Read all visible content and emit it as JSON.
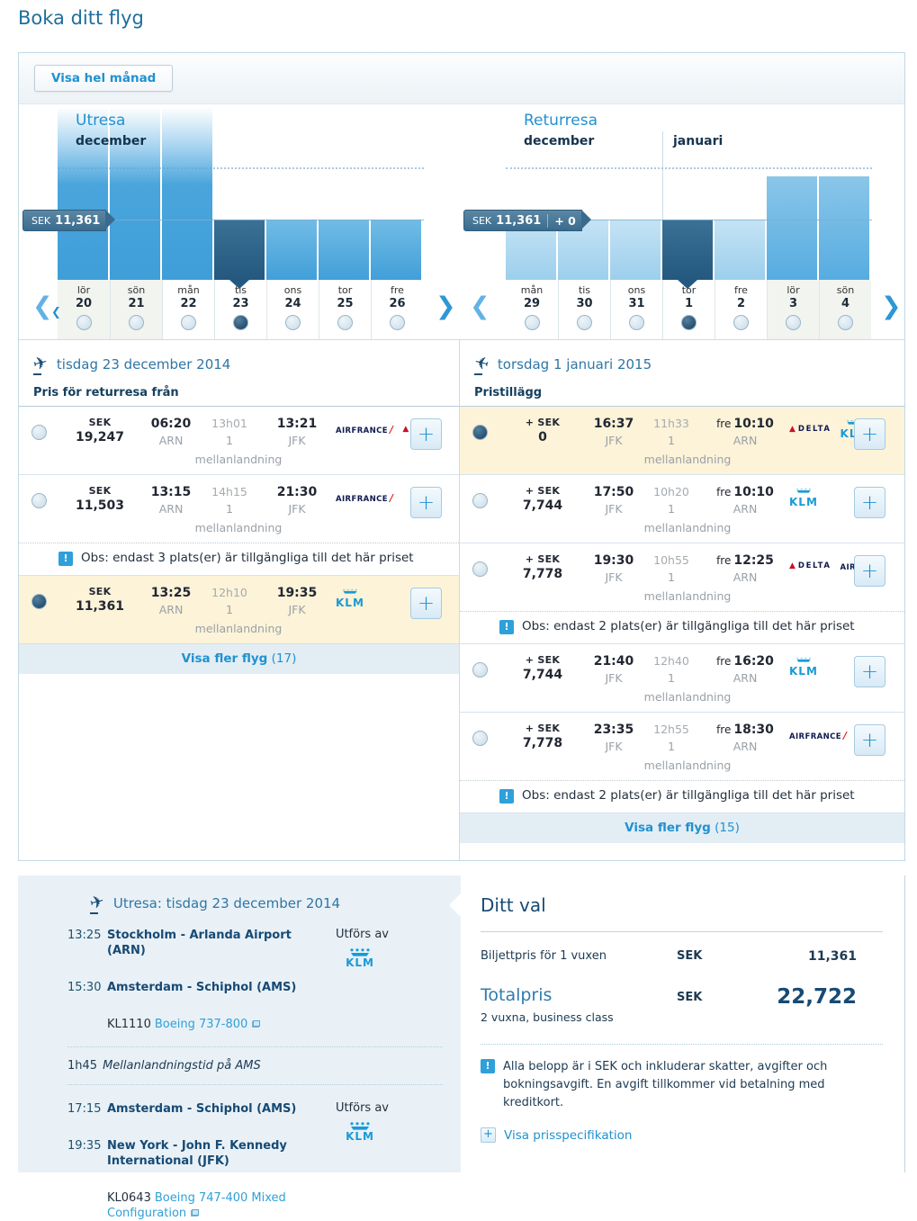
{
  "page": {
    "title": "Boka ditt flyg"
  },
  "ui": {
    "plus": "+",
    "prev": "❮",
    "next": "❯",
    "back_chev": "❮"
  },
  "calendar": {
    "back_label": "Visa hel månad",
    "outbound": {
      "title": "Utresa",
      "month1": "december",
      "tag": {
        "currency": "SEK",
        "amount": "11,361"
      },
      "days": [
        {
          "name": "lör",
          "num": "20"
        },
        {
          "name": "sön",
          "num": "21"
        },
        {
          "name": "mån",
          "num": "22"
        },
        {
          "name": "tis",
          "num": "23"
        },
        {
          "name": "ons",
          "num": "24"
        },
        {
          "name": "tor",
          "num": "25"
        },
        {
          "name": "fre",
          "num": "26"
        }
      ]
    },
    "inbound": {
      "title": "Returresa",
      "month1": "december",
      "month2": "januari",
      "tag": {
        "currency": "SEK",
        "amount": "11,361",
        "extra": "+ 0"
      },
      "days": [
        {
          "name": "mån",
          "num": "29"
        },
        {
          "name": "tis",
          "num": "30"
        },
        {
          "name": "ons",
          "num": "31"
        },
        {
          "name": "tor",
          "num": "1"
        },
        {
          "name": "fre",
          "num": "2"
        },
        {
          "name": "lör",
          "num": "3"
        },
        {
          "name": "sön",
          "num": "4"
        }
      ]
    }
  },
  "outbound_list": {
    "date": "tisdag 23 december 2014",
    "price_label": "Pris för returresa från",
    "flights": [
      {
        "cur": "SEK",
        "price": "19,247",
        "dep_time": "06:20",
        "dep_ap": "ARN",
        "dur": "13h01",
        "stops": "1",
        "stops_label": "mellanlandning",
        "arr_time": "13:21",
        "arr_ap": "JFK",
        "airlines": [
          "AIRFRANCE",
          "DELTA"
        ]
      },
      {
        "cur": "SEK",
        "price": "11,503",
        "dep_time": "13:15",
        "dep_ap": "ARN",
        "dur": "14h15",
        "stops": "1",
        "stops_label": "mellanlandning",
        "arr_time": "21:30",
        "arr_ap": "JFK",
        "airlines": [
          "AIRFRANCE"
        ],
        "note": "Obs: endast 3 plats(er) är tillgängliga till det här priset"
      },
      {
        "cur": "SEK",
        "price": "11,361",
        "dep_time": "13:25",
        "dep_ap": "ARN",
        "dur": "12h10",
        "stops": "1",
        "stops_label": "mellanlandning",
        "arr_time": "19:35",
        "arr_ap": "JFK",
        "airlines": [
          "KLM"
        ]
      }
    ],
    "more_label": "Visa fler flyg",
    "more_count": "(17)"
  },
  "inbound_list": {
    "date": "torsdag 1 januari 2015",
    "price_label": "Pristillägg",
    "flights": [
      {
        "cur": "+ SEK",
        "price": "0",
        "dep_time": "16:37",
        "dep_ap": "JFK",
        "dur": "11h33",
        "stops": "1",
        "stops_label": "mellanlandning",
        "arr_day": "fre",
        "arr_time": "10:10",
        "arr_ap": "ARN",
        "airlines": [
          "DELTA",
          "KLM"
        ]
      },
      {
        "cur": "+ SEK",
        "price": "7,744",
        "dep_time": "17:50",
        "dep_ap": "JFK",
        "dur": "10h20",
        "stops": "1",
        "stops_label": "mellanlandning",
        "arr_day": "fre",
        "arr_time": "10:10",
        "arr_ap": "ARN",
        "airlines": [
          "KLM"
        ]
      },
      {
        "cur": "+ SEK",
        "price": "7,778",
        "dep_time": "19:30",
        "dep_ap": "JFK",
        "dur": "10h55",
        "stops": "1",
        "stops_label": "mellanlandning",
        "arr_day": "fre",
        "arr_time": "12:25",
        "arr_ap": "ARN",
        "airlines": [
          "DELTA",
          "AIRFRANCE"
        ],
        "note": "Obs: endast 2 plats(er) är tillgängliga till det här priset"
      },
      {
        "cur": "+ SEK",
        "price": "7,744",
        "dep_time": "21:40",
        "dep_ap": "JFK",
        "dur": "12h40",
        "stops": "1",
        "stops_label": "mellanlandning",
        "arr_day": "fre",
        "arr_time": "16:20",
        "arr_ap": "ARN",
        "airlines": [
          "KLM"
        ]
      },
      {
        "cur": "+ SEK",
        "price": "7,778",
        "dep_time": "23:35",
        "dep_ap": "JFK",
        "dur": "12h55",
        "stops": "1",
        "stops_label": "mellanlandning",
        "arr_day": "fre",
        "arr_time": "18:30",
        "arr_ap": "ARN",
        "airlines": [
          "AIRFRANCE"
        ],
        "note": "Obs: endast 2 plats(er) är tillgängliga till det här priset"
      }
    ],
    "more_label": "Visa fler flyg",
    "more_count": "(15)"
  },
  "itinerary": {
    "heading": "Utresa: tisdag 23 december 2014",
    "operated_label": "Utförs av",
    "segments": [
      {
        "dep_time": "13:25",
        "dep_name": "Stockholm - Arlanda Airport (ARN)",
        "arr_time": "15:30",
        "arr_name": "Amsterdam - Schiphol (AMS)",
        "flight_no": "KL1110",
        "aircraft": "Boeing 737-800",
        "carrier": "KLM"
      },
      {
        "dep_time": "17:15",
        "dep_name": "Amsterdam - Schiphol (AMS)",
        "arr_time": "19:35",
        "arr_name": "New York - John F. Kennedy International (JFK)",
        "flight_no": "KL0643",
        "aircraft": "Boeing 747-400 Mixed Configuration",
        "carrier": "KLM"
      }
    ],
    "layover": {
      "dur": "1h45",
      "label": "Mellanlandningstid på AMS"
    }
  },
  "selection": {
    "title": "Ditt val",
    "ticket_label": "Biljettpris för 1 vuxen",
    "ticket_cur": "SEK",
    "ticket_amount": "11,361",
    "total_label": "Totalpris",
    "total_sub": "2 vuxna, business class",
    "total_cur": "SEK",
    "total_amount": "22,722",
    "note": "Alla belopp är i SEK och inkluderar skatter, avgifter och bokningsavgift. En avgift tillkommer vid betalning med kreditkort.",
    "spec_link": "Visa prisspecifikation"
  },
  "colors": {
    "accent": "#2191d0",
    "dark_navy": "#174a74",
    "bar_blue": "#47a4da",
    "bar_light": "#a9d4ee",
    "bar_selected": "#2b5f83",
    "selected_row_bg": "#fcf3d8",
    "info_icon": "#2ea0da"
  }
}
